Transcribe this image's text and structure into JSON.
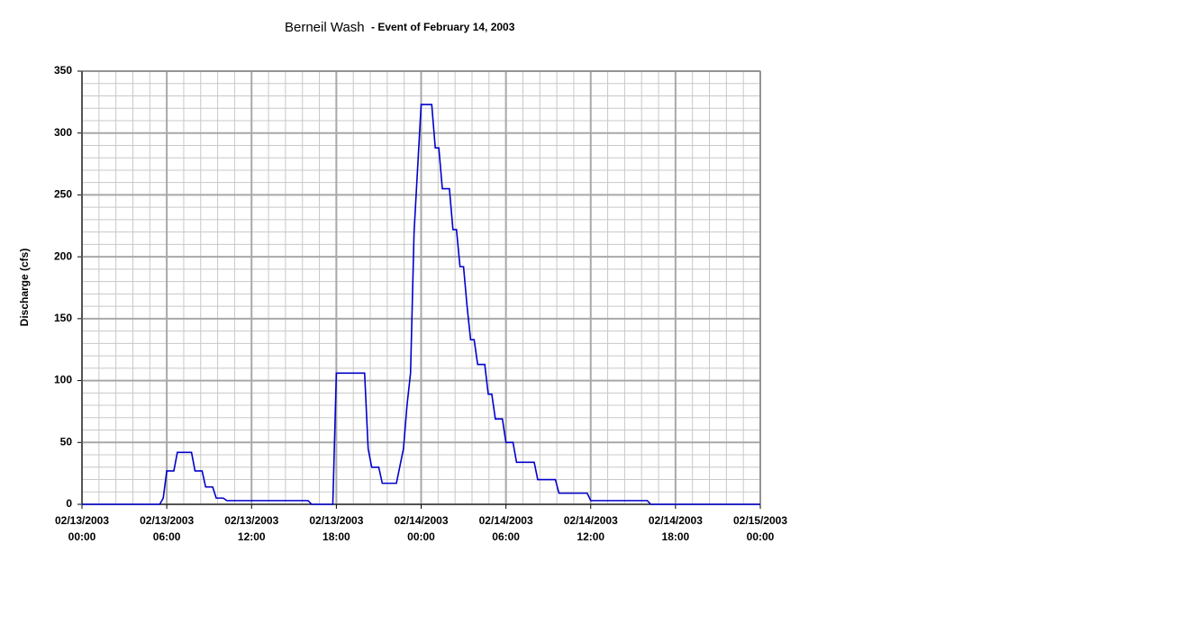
{
  "chart_data": {
    "type": "line",
    "title": "Berneil Wash",
    "subtitle": "- Event of February 14, 2003",
    "y_label": "Discharge (cfs)",
    "grid": true,
    "xlim": [
      "2003-02-13T00:00",
      "2003-02-15T00:00"
    ],
    "ylim": [
      0,
      350
    ],
    "yticks": [
      0,
      50,
      100,
      150,
      200,
      250,
      300,
      350
    ],
    "yminorticks": [
      0,
      10,
      20,
      30,
      40,
      50,
      60,
      70,
      80,
      90,
      100,
      110,
      120,
      130,
      140,
      150,
      160,
      170,
      180,
      190,
      200,
      210,
      220,
      230,
      240,
      250,
      260,
      270,
      280,
      290,
      300,
      310,
      320,
      330,
      340,
      350
    ],
    "xticks": [
      {
        "value": "2003-02-13T00:00",
        "label": "02/13/2003 00:00"
      },
      {
        "value": "2003-02-13T06:00",
        "label": "02/13/2003 06:00"
      },
      {
        "value": "2003-02-13T12:00",
        "label": "02/13/2003 12:00"
      },
      {
        "value": "2003-02-13T18:00",
        "label": "02/13/2003 18:00"
      },
      {
        "value": "2003-02-14T00:00",
        "label": "02/14/2003 00:00"
      },
      {
        "value": "2003-02-14T06:00",
        "label": "02/14/2003 06:00"
      },
      {
        "value": "2003-02-14T12:00",
        "label": "02/14/2003 12:00"
      },
      {
        "value": "2003-02-14T18:00",
        "label": "02/14/2003 18:00"
      },
      {
        "value": "2003-02-15T00:00",
        "label": "02/15/2003 00:00"
      }
    ],
    "xminorticks": [
      "2003-02-13T01:12",
      "2003-02-13T02:24",
      "2003-02-13T03:36",
      "2003-02-13T04:48",
      "2003-02-13T07:12",
      "2003-02-13T08:24",
      "2003-02-13T09:36",
      "2003-02-13T10:48",
      "2003-02-13T13:12",
      "2003-02-13T14:24",
      "2003-02-13T15:36",
      "2003-02-13T16:48",
      "2003-02-13T19:12",
      "2003-02-13T20:24",
      "2003-02-13T21:36",
      "2003-02-13T22:48",
      "2003-02-14T01:12",
      "2003-02-14T02:24",
      "2003-02-14T03:36",
      "2003-02-14T04:48",
      "2003-02-14T07:12",
      "2003-02-14T08:24",
      "2003-02-14T09:36",
      "2003-02-14T10:48",
      "2003-02-14T13:12",
      "2003-02-14T14:24",
      "2003-02-14T15:36",
      "2003-02-14T16:48",
      "2003-02-14T19:12",
      "2003-02-14T20:24",
      "2003-02-14T21:36",
      "2003-02-14T22:48"
    ],
    "x": [
      "2003-02-13T00:00",
      "2003-02-13T05:30",
      "2003-02-13T05:45",
      "2003-02-13T06:00",
      "2003-02-13T06:30",
      "2003-02-13T06:45",
      "2003-02-13T07:45",
      "2003-02-13T08:00",
      "2003-02-13T08:30",
      "2003-02-13T08:45",
      "2003-02-13T09:15",
      "2003-02-13T09:30",
      "2003-02-13T10:00",
      "2003-02-13T10:15",
      "2003-02-13T16:00",
      "2003-02-13T16:15",
      "2003-02-13T17:45",
      "2003-02-13T18:00",
      "2003-02-13T20:00",
      "2003-02-13T20:15",
      "2003-02-13T20:30",
      "2003-02-13T21:00",
      "2003-02-13T21:15",
      "2003-02-13T22:15",
      "2003-02-13T22:45",
      "2003-02-13T23:00",
      "2003-02-13T23:15",
      "2003-02-13T23:30",
      "2003-02-14T00:00",
      "2003-02-14T00:45",
      "2003-02-14T01:00",
      "2003-02-14T01:15",
      "2003-02-14T01:30",
      "2003-02-14T02:00",
      "2003-02-14T02:15",
      "2003-02-14T02:30",
      "2003-02-14T02:45",
      "2003-02-14T03:00",
      "2003-02-14T03:15",
      "2003-02-14T03:30",
      "2003-02-14T03:45",
      "2003-02-14T04:00",
      "2003-02-14T04:30",
      "2003-02-14T04:45",
      "2003-02-14T05:00",
      "2003-02-14T05:15",
      "2003-02-14T05:45",
      "2003-02-14T06:00",
      "2003-02-14T06:30",
      "2003-02-14T06:45",
      "2003-02-14T08:00",
      "2003-02-14T08:15",
      "2003-02-14T09:30",
      "2003-02-14T09:45",
      "2003-02-14T11:45",
      "2003-02-14T12:00",
      "2003-02-14T16:00",
      "2003-02-14T16:15",
      "2003-02-15T00:00"
    ],
    "series": [
      {
        "name": "Discharge",
        "color": "#0000cc",
        "values": [
          0,
          0,
          5,
          27,
          27,
          42,
          42,
          27,
          27,
          14,
          14,
          5,
          5,
          3,
          3,
          0,
          0,
          106,
          106,
          45,
          30,
          30,
          17,
          17,
          45,
          80,
          106,
          220,
          323,
          323,
          288,
          288,
          255,
          255,
          222,
          222,
          192,
          192,
          160,
          133,
          133,
          113,
          113,
          89,
          89,
          69,
          69,
          50,
          50,
          34,
          34,
          20,
          20,
          9,
          9,
          3,
          3,
          0,
          0
        ]
      }
    ]
  }
}
